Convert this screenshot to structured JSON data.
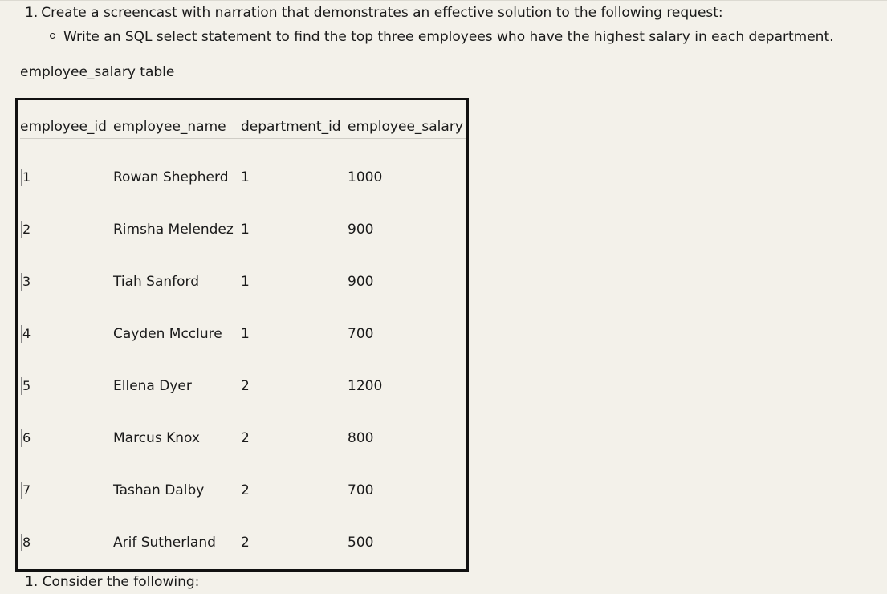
{
  "question": {
    "number": "1.",
    "text": "Create a screencast with narration that demonstrates an effective solution to the following request:",
    "bullet": "Write an SQL select statement to find the top three employees who have the highest salary in each department."
  },
  "table_caption": "employee_salary table",
  "table": {
    "columns": [
      "employee_id",
      "employee_name",
      "department_id",
      "employee_salary"
    ],
    "rows": [
      {
        "employee_id": "1",
        "employee_name": "Rowan Shepherd",
        "department_id": "1",
        "employee_salary": "1000"
      },
      {
        "employee_id": "2",
        "employee_name": "Rimsha Melendez",
        "department_id": "1",
        "employee_salary": "900"
      },
      {
        "employee_id": "3",
        "employee_name": "Tiah Sanford",
        "department_id": "1",
        "employee_salary": "900"
      },
      {
        "employee_id": "4",
        "employee_name": "Cayden Mcclure",
        "department_id": "1",
        "employee_salary": "700"
      },
      {
        "employee_id": "5",
        "employee_name": "Ellena Dyer",
        "department_id": "2",
        "employee_salary": "1200"
      },
      {
        "employee_id": "6",
        "employee_name": "Marcus Knox",
        "department_id": "2",
        "employee_salary": "800"
      },
      {
        "employee_id": "7",
        "employee_name": "Tashan Dalby",
        "department_id": "2",
        "employee_salary": "700"
      },
      {
        "employee_id": "8",
        "employee_name": "Arif Sutherland",
        "department_id": "2",
        "employee_salary": "500"
      }
    ]
  },
  "footer": {
    "number": "1.",
    "text": "Consider the following:"
  }
}
